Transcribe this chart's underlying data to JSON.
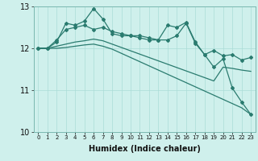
{
  "xlabel": "Humidex (Indice chaleur)",
  "x": [
    0,
    1,
    2,
    3,
    4,
    5,
    6,
    7,
    8,
    9,
    10,
    11,
    12,
    13,
    14,
    15,
    16,
    17,
    18,
    19,
    20,
    21,
    22,
    23
  ],
  "line1": [
    12.0,
    12.0,
    12.15,
    12.6,
    12.55,
    12.65,
    12.95,
    12.7,
    12.35,
    12.3,
    12.3,
    12.25,
    12.2,
    12.2,
    12.55,
    12.5,
    12.62,
    12.15,
    11.85,
    11.55,
    11.75,
    11.05,
    10.72,
    10.42
  ],
  "line2": [
    12.0,
    12.0,
    12.2,
    12.45,
    12.5,
    12.55,
    12.45,
    12.5,
    12.4,
    12.35,
    12.3,
    12.3,
    12.25,
    12.2,
    12.2,
    12.3,
    12.6,
    12.12,
    11.85,
    11.95,
    11.82,
    11.85,
    11.72,
    11.78
  ],
  "line3": [
    12.0,
    12.0,
    12.05,
    12.1,
    12.15,
    12.18,
    12.22,
    12.18,
    12.1,
    12.02,
    11.94,
    11.86,
    11.78,
    11.7,
    11.62,
    11.54,
    11.46,
    11.38,
    11.3,
    11.22,
    11.55,
    11.52,
    11.48,
    11.45
  ],
  "line4": [
    12.0,
    12.0,
    12.0,
    12.02,
    12.05,
    12.08,
    12.1,
    12.05,
    11.98,
    11.88,
    11.78,
    11.68,
    11.58,
    11.48,
    11.38,
    11.28,
    11.18,
    11.08,
    10.98,
    10.88,
    10.78,
    10.68,
    10.58,
    10.42
  ],
  "line_color": "#2a7b6f",
  "bg_color": "#cff0ec",
  "grid_color": "#aadcd7",
  "ylim": [
    10,
    13
  ],
  "yticks": [
    10,
    11,
    12,
    13
  ],
  "marker": "D",
  "marker_size": 2.0,
  "linewidth": 0.9
}
